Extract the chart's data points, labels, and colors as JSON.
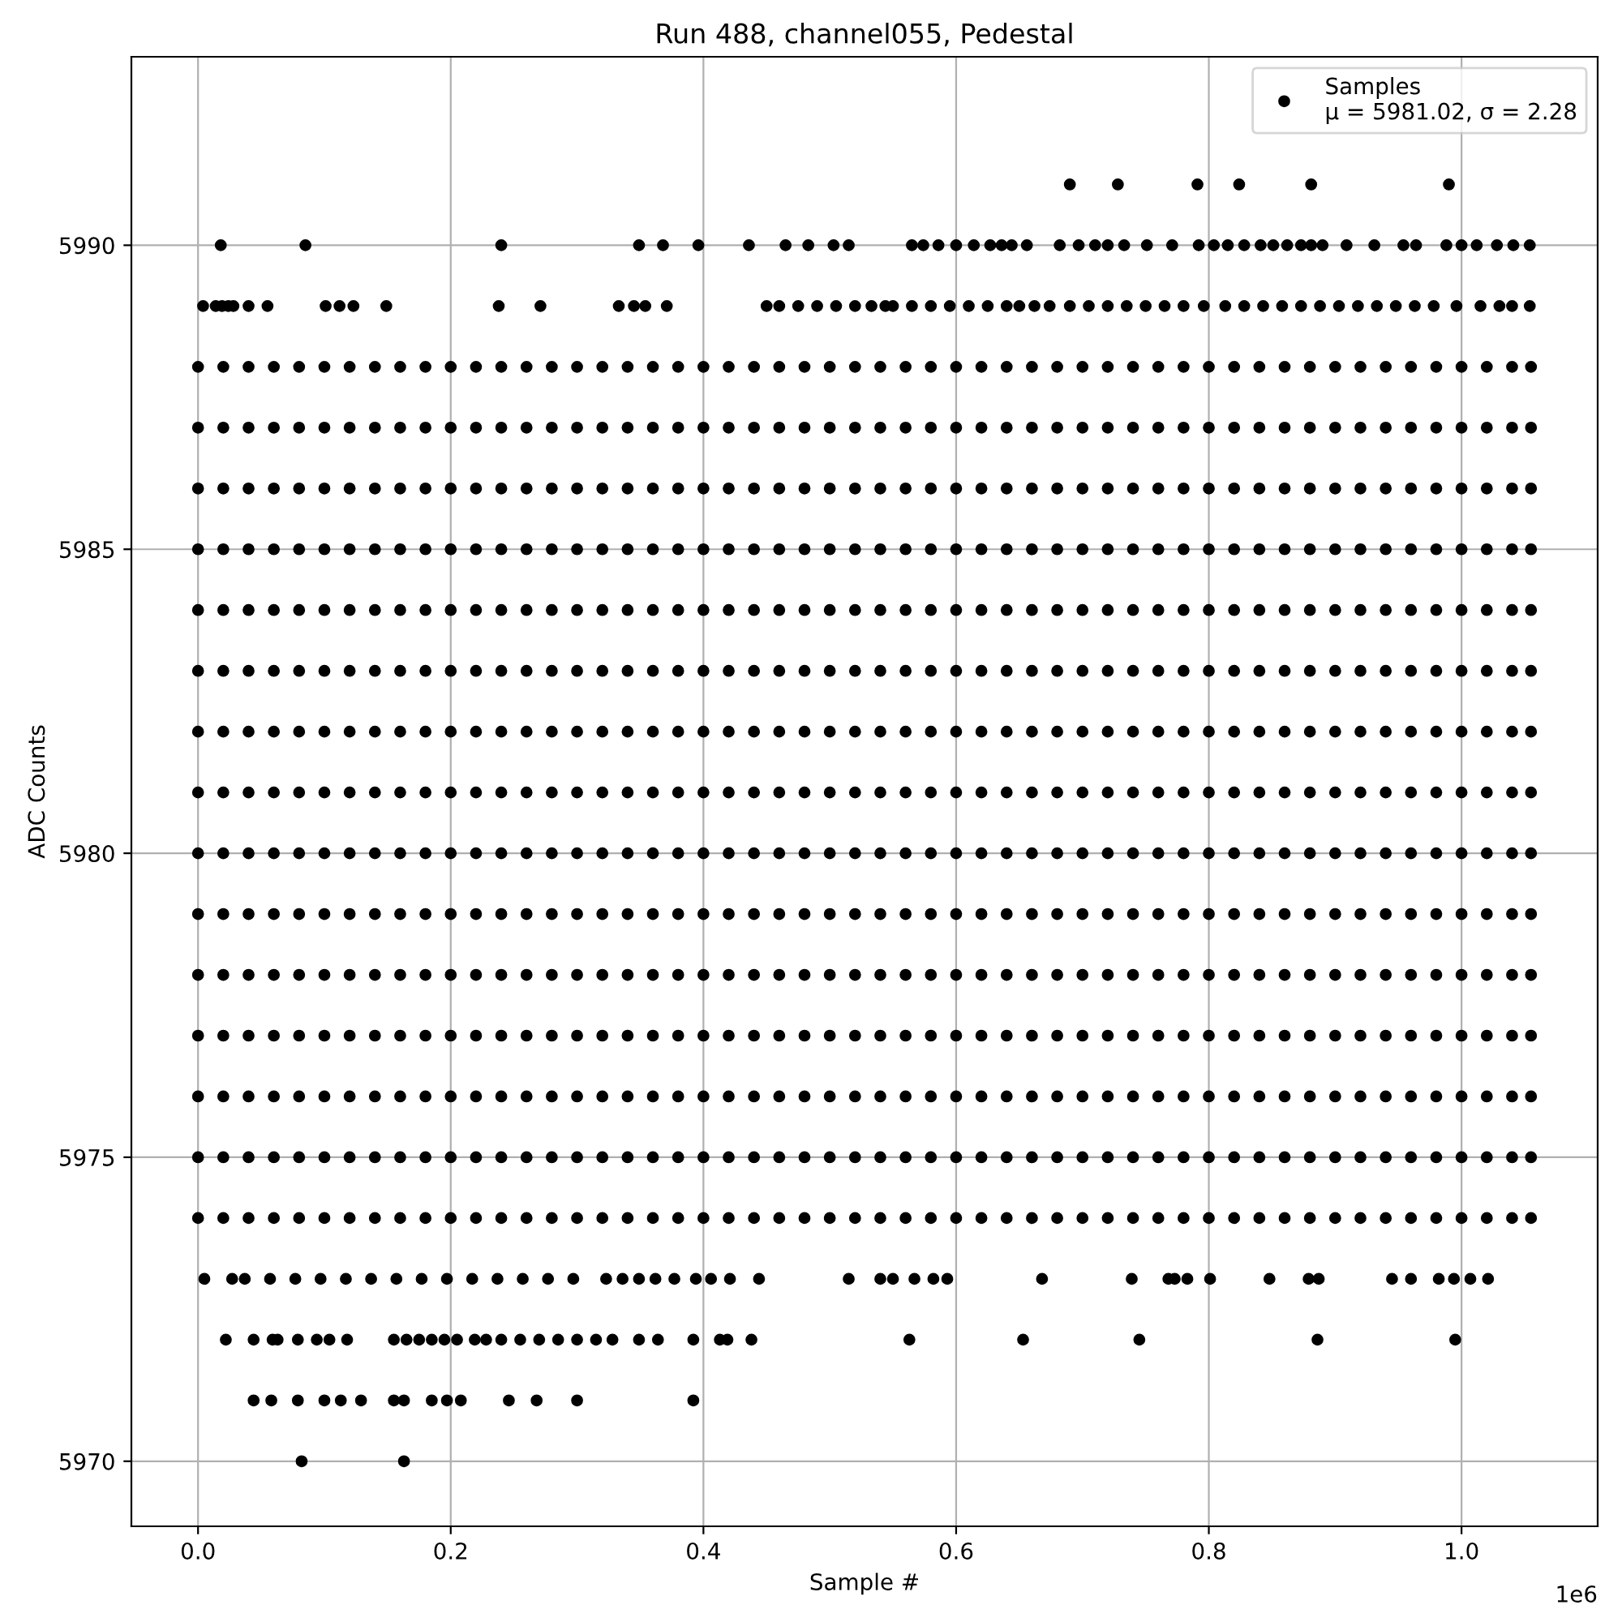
{
  "chart_data": {
    "type": "scatter",
    "title": "Run 488, channel055, Pedestal",
    "xlabel": "Sample #",
    "ylabel": "ADC Counts",
    "xlim": [
      -0.05275,
      1.10775
    ],
    "ylim": [
      5968.93,
      5993.1
    ],
    "xticks": [
      {
        "value": 0,
        "label": "0.0"
      },
      0.2,
      0.4,
      0.6,
      0.8,
      {
        "value": 1,
        "label": "1.0"
      }
    ],
    "yticks": [
      5970,
      5975,
      5980,
      5985,
      5990
    ],
    "annotations": [
      "1e6"
    ],
    "grid": true,
    "legend": "top right",
    "marker": "circle",
    "x": [
      0.0,
      0.02,
      0.04,
      0.06,
      0.08,
      0.1,
      0.12,
      0.14,
      0.16,
      0.18,
      0.2,
      0.22,
      0.24,
      0.26,
      0.28,
      0.3,
      0.32,
      0.34,
      0.36,
      0.38,
      0.4,
      0.42,
      0.44,
      0.46,
      0.48,
      0.5,
      0.52,
      0.54,
      0.56,
      0.58,
      0.6,
      0.62,
      0.64,
      0.66,
      0.68,
      0.7,
      0.72,
      0.74,
      0.76,
      0.78,
      0.8,
      0.82,
      0.84,
      0.86,
      0.88,
      0.9,
      0.92,
      0.94,
      0.96,
      0.98,
      1.0,
      1.02,
      1.04,
      1.055
    ],
    "series": [
      {
        "name": "Samples\nμ = 5981.02, σ = 2.28",
        "color": "#000000",
        "values": [
          5974,
          5974,
          5974,
          5974,
          5974,
          5974,
          5974,
          5974,
          5974,
          5974,
          5974,
          5974,
          5974,
          5974,
          5974,
          5974,
          5974,
          5974,
          5974,
          5974,
          5974,
          5974,
          5974,
          5974,
          5974,
          5974,
          5974,
          5974,
          5974,
          5974,
          5974,
          5974,
          5974,
          5974,
          5974,
          5974,
          5974,
          5974,
          5974,
          5974,
          5974,
          5974,
          5974,
          5974,
          5974,
          5974,
          5974,
          5974,
          5974,
          5974,
          5974,
          5974,
          5974,
          5974
        ]
      },
      {
        "color": "#000000",
        "values": [
          5975,
          5975,
          5975,
          5975,
          5975,
          5975,
          5975,
          5975,
          5975,
          5975,
          5975,
          5975,
          5975,
          5975,
          5975,
          5975,
          5975,
          5975,
          5975,
          5975,
          5975,
          5975,
          5975,
          5975,
          5975,
          5975,
          5975,
          5975,
          5975,
          5975,
          5975,
          5975,
          5975,
          5975,
          5975,
          5975,
          5975,
          5975,
          5975,
          5975,
          5975,
          5975,
          5975,
          5975,
          5975,
          5975,
          5975,
          5975,
          5975,
          5975,
          5975,
          5975,
          5975,
          5975
        ]
      },
      {
        "color": "#000000",
        "values": [
          5976,
          5976,
          5976,
          5976,
          5976,
          5976,
          5976,
          5976,
          5976,
          5976,
          5976,
          5976,
          5976,
          5976,
          5976,
          5976,
          5976,
          5976,
          5976,
          5976,
          5976,
          5976,
          5976,
          5976,
          5976,
          5976,
          5976,
          5976,
          5976,
          5976,
          5976,
          5976,
          5976,
          5976,
          5976,
          5976,
          5976,
          5976,
          5976,
          5976,
          5976,
          5976,
          5976,
          5976,
          5976,
          5976,
          5976,
          5976,
          5976,
          5976,
          5976,
          5976,
          5976,
          5976
        ]
      },
      {
        "color": "#000000",
        "values": [
          5977,
          5977,
          5977,
          5977,
          5977,
          5977,
          5977,
          5977,
          5977,
          5977,
          5977,
          5977,
          5977,
          5977,
          5977,
          5977,
          5977,
          5977,
          5977,
          5977,
          5977,
          5977,
          5977,
          5977,
          5977,
          5977,
          5977,
          5977,
          5977,
          5977,
          5977,
          5977,
          5977,
          5977,
          5977,
          5977,
          5977,
          5977,
          5977,
          5977,
          5977,
          5977,
          5977,
          5977,
          5977,
          5977,
          5977,
          5977,
          5977,
          5977,
          5977,
          5977,
          5977,
          5977
        ]
      },
      {
        "color": "#000000",
        "values": [
          5978,
          5978,
          5978,
          5978,
          5978,
          5978,
          5978,
          5978,
          5978,
          5978,
          5978,
          5978,
          5978,
          5978,
          5978,
          5978,
          5978,
          5978,
          5978,
          5978,
          5978,
          5978,
          5978,
          5978,
          5978,
          5978,
          5978,
          5978,
          5978,
          5978,
          5978,
          5978,
          5978,
          5978,
          5978,
          5978,
          5978,
          5978,
          5978,
          5978,
          5978,
          5978,
          5978,
          5978,
          5978,
          5978,
          5978,
          5978,
          5978,
          5978,
          5978,
          5978,
          5978,
          5978
        ]
      },
      {
        "color": "#000000",
        "values": [
          5979,
          5979,
          5979,
          5979,
          5979,
          5979,
          5979,
          5979,
          5979,
          5979,
          5979,
          5979,
          5979,
          5979,
          5979,
          5979,
          5979,
          5979,
          5979,
          5979,
          5979,
          5979,
          5979,
          5979,
          5979,
          5979,
          5979,
          5979,
          5979,
          5979,
          5979,
          5979,
          5979,
          5979,
          5979,
          5979,
          5979,
          5979,
          5979,
          5979,
          5979,
          5979,
          5979,
          5979,
          5979,
          5979,
          5979,
          5979,
          5979,
          5979,
          5979,
          5979,
          5979,
          5979
        ]
      },
      {
        "color": "#000000",
        "values": [
          5980,
          5980,
          5980,
          5980,
          5980,
          5980,
          5980,
          5980,
          5980,
          5980,
          5980,
          5980,
          5980,
          5980,
          5980,
          5980,
          5980,
          5980,
          5980,
          5980,
          5980,
          5980,
          5980,
          5980,
          5980,
          5980,
          5980,
          5980,
          5980,
          5980,
          5980,
          5980,
          5980,
          5980,
          5980,
          5980,
          5980,
          5980,
          5980,
          5980,
          5980,
          5980,
          5980,
          5980,
          5980,
          5980,
          5980,
          5980,
          5980,
          5980,
          5980,
          5980,
          5980,
          5980
        ]
      },
      {
        "color": "#000000",
        "values": [
          5981,
          5981,
          5981,
          5981,
          5981,
          5981,
          5981,
          5981,
          5981,
          5981,
          5981,
          5981,
          5981,
          5981,
          5981,
          5981,
          5981,
          5981,
          5981,
          5981,
          5981,
          5981,
          5981,
          5981,
          5981,
          5981,
          5981,
          5981,
          5981,
          5981,
          5981,
          5981,
          5981,
          5981,
          5981,
          5981,
          5981,
          5981,
          5981,
          5981,
          5981,
          5981,
          5981,
          5981,
          5981,
          5981,
          5981,
          5981,
          5981,
          5981,
          5981,
          5981,
          5981,
          5981
        ]
      },
      {
        "color": "#000000",
        "values": [
          5982,
          5982,
          5982,
          5982,
          5982,
          5982,
          5982,
          5982,
          5982,
          5982,
          5982,
          5982,
          5982,
          5982,
          5982,
          5982,
          5982,
          5982,
          5982,
          5982,
          5982,
          5982,
          5982,
          5982,
          5982,
          5982,
          5982,
          5982,
          5982,
          5982,
          5982,
          5982,
          5982,
          5982,
          5982,
          5982,
          5982,
          5982,
          5982,
          5982,
          5982,
          5982,
          5982,
          5982,
          5982,
          5982,
          5982,
          5982,
          5982,
          5982,
          5982,
          5982,
          5982,
          5982
        ]
      },
      {
        "color": "#000000",
        "values": [
          5983,
          5983,
          5983,
          5983,
          5983,
          5983,
          5983,
          5983,
          5983,
          5983,
          5983,
          5983,
          5983,
          5983,
          5983,
          5983,
          5983,
          5983,
          5983,
          5983,
          5983,
          5983,
          5983,
          5983,
          5983,
          5983,
          5983,
          5983,
          5983,
          5983,
          5983,
          5983,
          5983,
          5983,
          5983,
          5983,
          5983,
          5983,
          5983,
          5983,
          5983,
          5983,
          5983,
          5983,
          5983,
          5983,
          5983,
          5983,
          5983,
          5983,
          5983,
          5983,
          5983,
          5983
        ]
      },
      {
        "color": "#000000",
        "values": [
          5984,
          5984,
          5984,
          5984,
          5984,
          5984,
          5984,
          5984,
          5984,
          5984,
          5984,
          5984,
          5984,
          5984,
          5984,
          5984,
          5984,
          5984,
          5984,
          5984,
          5984,
          5984,
          5984,
          5984,
          5984,
          5984,
          5984,
          5984,
          5984,
          5984,
          5984,
          5984,
          5984,
          5984,
          5984,
          5984,
          5984,
          5984,
          5984,
          5984,
          5984,
          5984,
          5984,
          5984,
          5984,
          5984,
          5984,
          5984,
          5984,
          5984,
          5984,
          5984,
          5984,
          5984
        ]
      },
      {
        "color": "#000000",
        "values": [
          5985,
          5985,
          5985,
          5985,
          5985,
          5985,
          5985,
          5985,
          5985,
          5985,
          5985,
          5985,
          5985,
          5985,
          5985,
          5985,
          5985,
          5985,
          5985,
          5985,
          5985,
          5985,
          5985,
          5985,
          5985,
          5985,
          5985,
          5985,
          5985,
          5985,
          5985,
          5985,
          5985,
          5985,
          5985,
          5985,
          5985,
          5985,
          5985,
          5985,
          5985,
          5985,
          5985,
          5985,
          5985,
          5985,
          5985,
          5985,
          5985,
          5985,
          5985,
          5985,
          5985,
          5985
        ]
      },
      {
        "color": "#000000",
        "values": [
          5986,
          5986,
          5986,
          5986,
          5986,
          5986,
          5986,
          5986,
          5986,
          5986,
          5986,
          5986,
          5986,
          5986,
          5986,
          5986,
          5986,
          5986,
          5986,
          5986,
          5986,
          5986,
          5986,
          5986,
          5986,
          5986,
          5986,
          5986,
          5986,
          5986,
          5986,
          5986,
          5986,
          5986,
          5986,
          5986,
          5986,
          5986,
          5986,
          5986,
          5986,
          5986,
          5986,
          5986,
          5986,
          5986,
          5986,
          5986,
          5986,
          5986,
          5986,
          5986,
          5986,
          5986
        ]
      },
      {
        "color": "#000000",
        "values": [
          5987,
          5987,
          5987,
          5987,
          5987,
          5987,
          5987,
          5987,
          5987,
          5987,
          5987,
          5987,
          5987,
          5987,
          5987,
          5987,
          5987,
          5987,
          5987,
          5987,
          5987,
          5987,
          5987,
          5987,
          5987,
          5987,
          5987,
          5987,
          5987,
          5987,
          5987,
          5987,
          5987,
          5987,
          5987,
          5987,
          5987,
          5987,
          5987,
          5987,
          5987,
          5987,
          5987,
          5987,
          5987,
          5987,
          5987,
          5987,
          5987,
          5987,
          5987,
          5987,
          5987,
          5987
        ]
      },
      {
        "color": "#000000",
        "values": [
          5988,
          5988,
          5988,
          5988,
          5988,
          5988,
          5988,
          5988,
          5988,
          5988,
          5988,
          5988,
          5988,
          5988,
          5988,
          5988,
          5988,
          5988,
          5988,
          5988,
          5988,
          5988,
          5988,
          5988,
          5988,
          5988,
          5988,
          5988,
          5988,
          5988,
          5988,
          5988,
          5988,
          5988,
          5988,
          5988,
          5988,
          5988,
          5988,
          5988,
          5988,
          5988,
          5988,
          5988,
          5988,
          5988,
          5988,
          5988,
          5988,
          5988,
          5988,
          5988,
          5988,
          5988
        ]
      },
      {
        "color": "#000000",
        "x": [
          0.004,
          0.014,
          0.019,
          0.024,
          0.028,
          0.04,
          0.055,
          0.101,
          0.112,
          0.123,
          0.149,
          0.238,
          0.271,
          0.333,
          0.345,
          0.354,
          0.371,
          0.45,
          0.46,
          0.475,
          0.49,
          0.505,
          0.52,
          0.533,
          0.544,
          0.55,
          0.565,
          0.58,
          0.595,
          0.61,
          0.625,
          0.64,
          0.65,
          0.662,
          0.674,
          0.69,
          0.705,
          0.72,
          0.735,
          0.75,
          0.765,
          0.78,
          0.796,
          0.813,
          0.828,
          0.843,
          0.858,
          0.873,
          0.888,
          0.903,
          0.918,
          0.933,
          0.948,
          0.963,
          0.978,
          0.996,
          1.015,
          1.03,
          1.04,
          1.054
        ],
        "values": [
          5989,
          5989,
          5989,
          5989,
          5989,
          5989,
          5989,
          5989,
          5989,
          5989,
          5989,
          5989,
          5989,
          5989,
          5989,
          5989,
          5989,
          5989,
          5989,
          5989,
          5989,
          5989,
          5989,
          5989,
          5989,
          5989,
          5989,
          5989,
          5989,
          5989,
          5989,
          5989,
          5989,
          5989,
          5989,
          5989,
          5989,
          5989,
          5989,
          5989,
          5989,
          5989,
          5989,
          5989,
          5989,
          5989,
          5989,
          5989,
          5989,
          5989,
          5989,
          5989,
          5989,
          5989,
          5989,
          5989,
          5989,
          5989,
          5989,
          5989
        ]
      },
      {
        "color": "#000000",
        "x": [
          0.018,
          0.085,
          0.24,
          0.349,
          0.368,
          0.396,
          0.436,
          0.465,
          0.483,
          0.503,
          0.515,
          0.565,
          0.574,
          0.586,
          0.6,
          0.614,
          0.627,
          0.636,
          0.644,
          0.656,
          0.682,
          0.697,
          0.71,
          0.72,
          0.733,
          0.751,
          0.771,
          0.792,
          0.804,
          0.815,
          0.828,
          0.841,
          0.851,
          0.862,
          0.873,
          0.881,
          0.89,
          0.909,
          0.931,
          0.954,
          0.964,
          0.988,
          1.0,
          1.012,
          1.028,
          1.041,
          1.054
        ],
        "values": [
          5990,
          5990,
          5990,
          5990,
          5990,
          5990,
          5990,
          5990,
          5990,
          5990,
          5990,
          5990,
          5990,
          5990,
          5990,
          5990,
          5990,
          5990,
          5990,
          5990,
          5990,
          5990,
          5990,
          5990,
          5990,
          5990,
          5990,
          5990,
          5990,
          5990,
          5990,
          5990,
          5990,
          5990,
          5990,
          5990,
          5990,
          5990,
          5990,
          5990,
          5990,
          5990,
          5990,
          5990,
          5990,
          5990,
          5990
        ]
      },
      {
        "color": "#000000",
        "x": [
          0.69,
          0.728,
          0.791,
          0.824,
          0.881,
          0.99
        ],
        "values": [
          5991,
          5991,
          5991,
          5991,
          5991,
          5991
        ]
      },
      {
        "color": "#000000",
        "x": [
          0.005,
          0.027,
          0.037,
          0.057,
          0.077,
          0.097,
          0.117,
          0.137,
          0.157,
          0.177,
          0.197,
          0.217,
          0.237,
          0.257,
          0.277,
          0.297,
          0.323,
          0.336,
          0.349,
          0.362,
          0.377,
          0.394,
          0.406,
          0.421,
          0.444,
          0.515,
          0.54,
          0.55,
          0.567,
          0.582,
          0.593,
          0.668,
          0.739,
          0.768,
          0.773,
          0.783,
          0.801,
          0.848,
          0.879,
          0.887,
          0.945,
          0.96,
          0.982,
          0.994,
          1.007,
          1.021
        ],
        "values": [
          5973,
          5973,
          5973,
          5973,
          5973,
          5973,
          5973,
          5973,
          5973,
          5973,
          5973,
          5973,
          5973,
          5973,
          5973,
          5973,
          5973,
          5973,
          5973,
          5973,
          5973,
          5973,
          5973,
          5973,
          5973,
          5973,
          5973,
          5973,
          5973,
          5973,
          5973,
          5973,
          5973,
          5973,
          5973,
          5973,
          5973,
          5973,
          5973,
          5973,
          5973,
          5973,
          5973,
          5973,
          5973,
          5973
        ]
      },
      {
        "color": "#000000",
        "x": [
          0.022,
          0.044,
          0.059,
          0.063,
          0.079,
          0.094,
          0.104,
          0.118,
          0.155,
          0.165,
          0.175,
          0.185,
          0.195,
          0.205,
          0.219,
          0.228,
          0.24,
          0.255,
          0.27,
          0.285,
          0.3,
          0.315,
          0.328,
          0.349,
          0.364,
          0.392,
          0.413,
          0.419,
          0.438,
          0.563,
          0.653,
          0.745,
          0.886,
          0.995
        ],
        "values": [
          5972,
          5972,
          5972,
          5972,
          5972,
          5972,
          5972,
          5972,
          5972,
          5972,
          5972,
          5972,
          5972,
          5972,
          5972,
          5972,
          5972,
          5972,
          5972,
          5972,
          5972,
          5972,
          5972,
          5972,
          5972,
          5972,
          5972,
          5972,
          5972,
          5972,
          5972,
          5972,
          5972,
          5972
        ]
      },
      {
        "color": "#000000",
        "x": [
          0.044,
          0.058,
          0.079,
          0.1,
          0.113,
          0.129,
          0.155,
          0.163,
          0.185,
          0.197,
          0.208,
          0.246,
          0.268,
          0.3,
          0.392
        ],
        "values": [
          5971,
          5971,
          5971,
          5971,
          5971,
          5971,
          5971,
          5971,
          5971,
          5971,
          5971,
          5971,
          5971,
          5971,
          5971
        ]
      },
      {
        "color": "#000000",
        "x": [
          0.082,
          0.163
        ],
        "values": [
          5970,
          5970
        ]
      }
    ]
  }
}
